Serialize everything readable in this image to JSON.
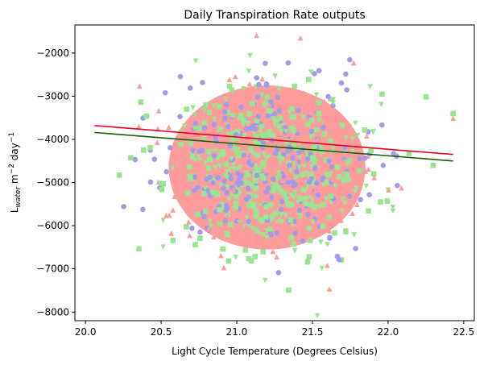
{
  "chart_data": {
    "type": "scatter",
    "title": "Daily Transpiration Rate outputs",
    "xlabel": "Light Cycle Temperature (Degrees Celsius)",
    "ylabel": {
      "base": "L",
      "sub": "water",
      "mid": " m",
      "sup1": "−2",
      "end": " day",
      "sup2": "−1"
    },
    "xlim": [
      19.93,
      22.57
    ],
    "ylim": [
      -8200,
      -1350
    ],
    "x_ticks": [
      20.0,
      20.5,
      21.0,
      21.5,
      22.0,
      22.5
    ],
    "x_tick_labels": [
      "20.0",
      "20.5",
      "21.0",
      "21.5",
      "22.0",
      "22.5"
    ],
    "y_ticks": [
      -8000,
      -7000,
      -6000,
      -5000,
      -4000,
      -3000,
      -2000
    ],
    "y_tick_labels": [
      "−8000",
      "−7000",
      "−6000",
      "−5000",
      "−4000",
      "−3000",
      "−2000"
    ],
    "grid": false,
    "legend": "none",
    "x_range": [
      20.06,
      22.43
    ],
    "x_center": 21.2,
    "y_center": -4650,
    "series": [
      {
        "marker": "circle",
        "color": "#a29bea"
      },
      {
        "marker": "square",
        "color": "#97e68f"
      },
      {
        "marker": "triangle-down",
        "color": "#97e68f"
      },
      {
        "marker": "triangle-up",
        "color": "#ff9b9b"
      }
    ],
    "trend_lines": [
      {
        "color": "#e8001e",
        "x": [
          20.06,
          22.43
        ],
        "y": [
          -3680,
          -4350
        ]
      },
      {
        "color": "#1a5c00",
        "x": [
          20.06,
          22.43
        ],
        "y": [
          -3840,
          -4500
        ]
      }
    ],
    "blob_color": "#ff9b9b"
  }
}
